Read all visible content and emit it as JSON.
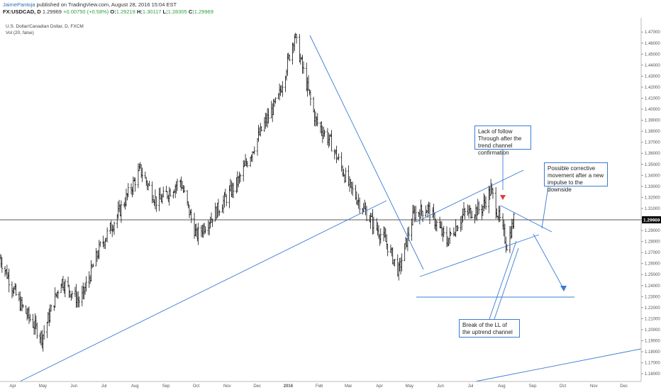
{
  "header": {
    "author": "JaimePantoja",
    "published": "published on TradingView.com, August 28, 2016 15:04 EST",
    "symbol_line_prefix": "FX:USDCAD, D",
    "last": "1.29969",
    "change": "+0.00750 (+0.58%)",
    "o_label": "O:",
    "o": "1.29219",
    "h_label": "H:",
    "h": "1.30117",
    "l_label": "L:",
    "l": "1.28305",
    "c_label": "C:",
    "c": "1.29969"
  },
  "legend": {
    "title": "U.S. Dollar/Canadian Dollar, D, FXCM",
    "vol": "Vol (20, false)"
  },
  "price_tag": "1.29969",
  "annotations": {
    "lack": "Lack of follow Through after the trend channel confirmation",
    "possible": "Possible corrective movement after a new impulse to the downside",
    "break": "Break of the LL of the uptrend channel"
  },
  "colors": {
    "bar": "#111111",
    "trendline": "#3a7bd5",
    "arrow_red": "#e53935",
    "price_tag_bg": "#000000"
  },
  "chart_data": {
    "type": "ohlc",
    "title": "U.S. Dollar/Canadian Dollar, D, FXCM",
    "xlabel": "",
    "ylabel": "",
    "ylim": [
      1.153,
      1.483
    ],
    "y_ticks": [
      "1.47000",
      "1.46000",
      "1.45000",
      "1.44000",
      "1.43000",
      "1.42000",
      "1.41000",
      "1.40000",
      "1.39000",
      "1.38000",
      "1.37000",
      "1.36000",
      "1.35000",
      "1.34000",
      "1.33000",
      "1.32000",
      "1.31000",
      "1.30000",
      "1.29000",
      "1.28000",
      "1.27000",
      "1.26000",
      "1.25000",
      "1.24000",
      "1.23000",
      "1.22000",
      "1.21000",
      "1.20000",
      "1.19000",
      "1.18000",
      "1.17000",
      "1.16000"
    ],
    "x_ticks": [
      "Apr",
      "May",
      "Jun",
      "Jul",
      "Aug",
      "Sep",
      "Oct",
      "Nov",
      "Dec",
      "2016",
      "Feb",
      "Mar",
      "Apr",
      "May",
      "Jun",
      "Jul",
      "Aug",
      "Sep",
      "Oct",
      "Nov",
      "Dec"
    ],
    "x_range": [
      "2015-04-01",
      "2016-12-31"
    ],
    "price_points": [
      [
        "2015-04-01",
        1.265
      ],
      [
        "2015-04-20",
        1.225
      ],
      [
        "2015-05-13",
        1.193
      ],
      [
        "2015-06-01",
        1.245
      ],
      [
        "2015-06-20",
        1.225
      ],
      [
        "2015-07-10",
        1.275
      ],
      [
        "2015-07-28",
        1.305
      ],
      [
        "2015-08-19",
        1.345
      ],
      [
        "2015-09-05",
        1.315
      ],
      [
        "2015-09-28",
        1.335
      ],
      [
        "2015-10-14",
        1.285
      ],
      [
        "2015-11-01",
        1.305
      ],
      [
        "2015-11-25",
        1.335
      ],
      [
        "2015-12-20",
        1.385
      ],
      [
        "2016-01-04",
        1.41
      ],
      [
        "2016-01-20",
        1.467
      ],
      [
        "2016-02-10",
        1.39
      ],
      [
        "2016-02-25",
        1.37
      ],
      [
        "2016-03-15",
        1.33
      ],
      [
        "2016-04-01",
        1.305
      ],
      [
        "2016-04-20",
        1.28
      ],
      [
        "2016-05-03",
        1.253
      ],
      [
        "2016-05-18",
        1.305
      ],
      [
        "2016-06-01",
        1.31
      ],
      [
        "2016-06-20",
        1.28
      ],
      [
        "2016-07-07",
        1.305
      ],
      [
        "2016-07-25",
        1.31
      ],
      [
        "2016-08-03",
        1.327
      ],
      [
        "2016-08-19",
        1.277
      ],
      [
        "2016-08-26",
        1.2997
      ]
    ],
    "last_price": 1.29969
  }
}
